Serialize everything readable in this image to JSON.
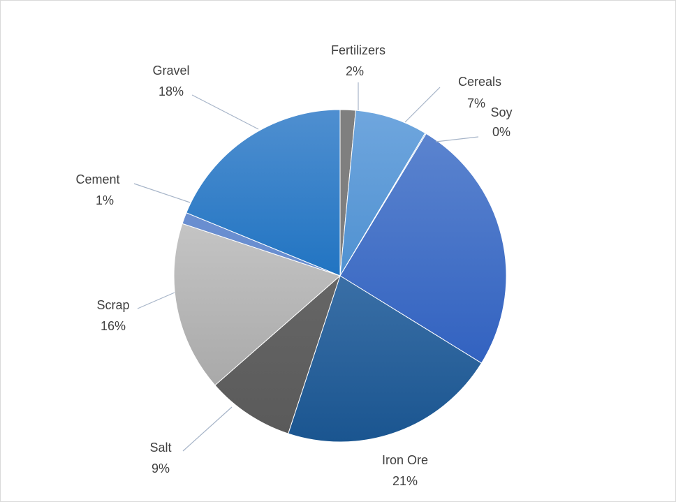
{
  "chart_data": {
    "type": "pie",
    "title": "",
    "legend": "none",
    "slices": [
      {
        "name": "Fertilizers",
        "value": 2,
        "label": "2%",
        "color": "#7f7f7f"
      },
      {
        "name": "Cereals",
        "value": 7,
        "label": "7%",
        "color": "#5b9bd5"
      },
      {
        "name": "Soy",
        "value": 0,
        "label": "0%",
        "color": "#9dc3e6"
      },
      {
        "name": "",
        "value": 26,
        "label": "",
        "color": "#4472c4"
      },
      {
        "name": "Iron Ore",
        "value": 21,
        "label": "21%",
        "color": "#255e91"
      },
      {
        "name": "Salt",
        "value": 9,
        "label": "9%",
        "color": "#636363"
      },
      {
        "name": "Scrap",
        "value": 16,
        "label": "16%",
        "color": "#b7b7b7"
      },
      {
        "name": "Cement",
        "value": 1,
        "label": "1%",
        "color": "#698ed0"
      },
      {
        "name": "Gravel",
        "value": 18,
        "label": "18%",
        "color": "#2e75b6"
      }
    ]
  }
}
